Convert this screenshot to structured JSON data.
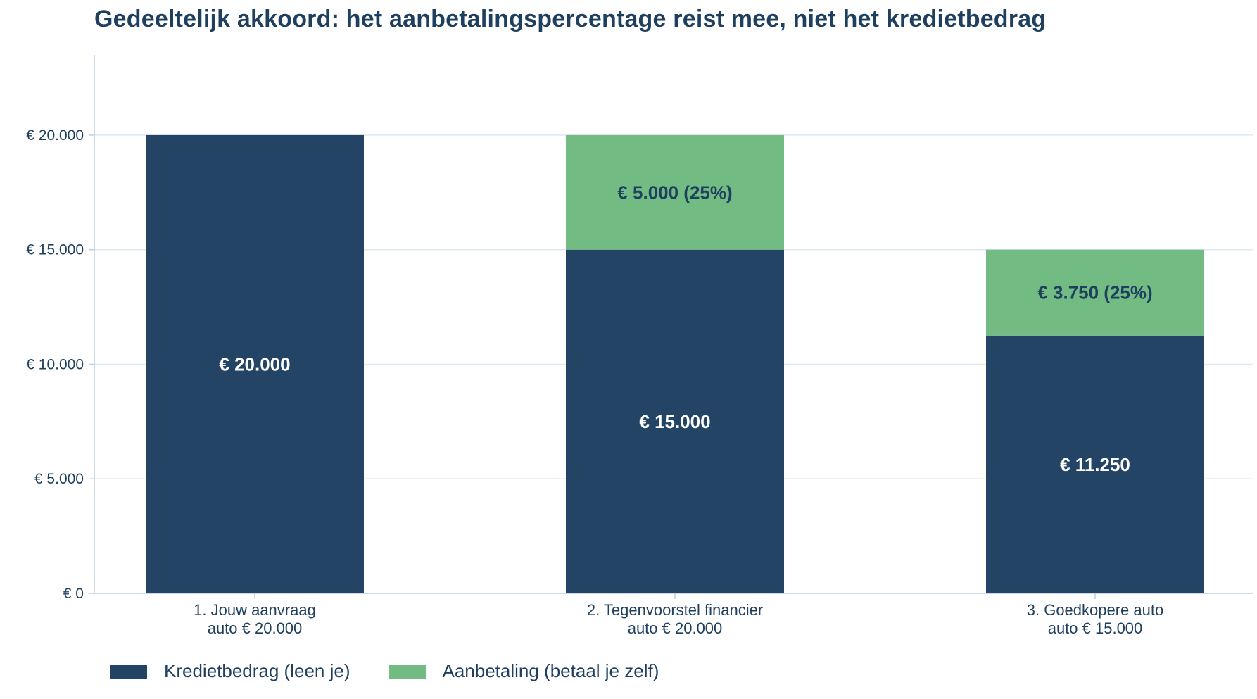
{
  "chart_data": {
    "type": "bar",
    "stacked": true,
    "title": "Gedeeltelijk akkoord: het aanbetalingspercentage reist mee, niet het kredietbedrag",
    "xlabel": "",
    "ylabel": "",
    "ylim": [
      0,
      23500
    ],
    "yticks": [
      0,
      5000,
      10000,
      15000,
      20000
    ],
    "ytick_labels": [
      "€ 0",
      "€ 5.000",
      "€ 10.000",
      "€ 15.000",
      "€ 20.000"
    ],
    "grid": true,
    "legend_position": "bottom-left",
    "categories": [
      [
        "1. Jouw aanvraag",
        "auto € 20.000"
      ],
      [
        "2. Tegenvoorstel financier",
        "auto € 20.000"
      ],
      [
        "3. Goedkopere auto",
        "auto € 15.000"
      ]
    ],
    "series": [
      {
        "name": "Kredietbedrag (leen je)",
        "color": "#234464",
        "label_color": "#ffffff",
        "values": [
          20000,
          15000,
          11250
        ],
        "labels": [
          "€ 20.000",
          "€ 15.000",
          "€ 11.250"
        ]
      },
      {
        "name": "Aanbetaling (betaal je zelf)",
        "color": "#72bc84",
        "label_color": "#1f3f5f",
        "values": [
          0,
          5000,
          3750
        ],
        "labels": [
          "",
          "€ 5.000 (25%)",
          "€ 3.750 (25%)"
        ]
      }
    ]
  },
  "colors": {
    "text": "#1f3f5f",
    "axis": "#b9cfe2",
    "grid": "#dde8f1"
  }
}
